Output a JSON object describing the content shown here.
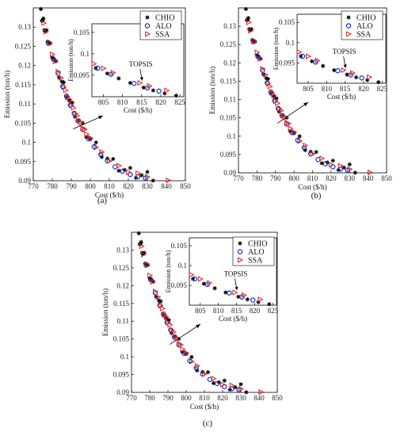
{
  "figure": {
    "captions": [
      "(a)",
      "(b)",
      "(c)"
    ]
  },
  "chart_data": [
    {
      "type": "scatter",
      "panel": "(a)",
      "xlabel": "Cost ($/h)",
      "ylabel": "Emission (ton/h)",
      "xlim": [
        770,
        850
      ],
      "ylim": [
        0.09,
        0.135
      ],
      "xticks": [
        "770",
        "780",
        "790",
        "800",
        "810",
        "820",
        "830",
        "840",
        "850"
      ],
      "yticks": [
        "0.09",
        "0.095",
        "0.1",
        "0.105",
        "0.11",
        "0.115",
        "0.12",
        "0.125",
        "0.13"
      ],
      "inset": {
        "xlim": [
          802,
          826
        ],
        "ylim": [
          0.09,
          0.107
        ],
        "xticks": [
          "805",
          "810",
          "815",
          "820",
          "825"
        ],
        "yticks": [
          "0.095",
          "0.1",
          "0.105"
        ],
        "xlabel": "Cost ($/h)",
        "ylabel": "Emission (ton/h)",
        "annotation": "TOPSIS",
        "topsis_point": [
          815,
          0.0937
        ]
      },
      "series": [
        {
          "name": "CHIO",
          "marker": "asterisk",
          "color": "#000000"
        },
        {
          "name": "ALO",
          "marker": "circle",
          "color": "#1030c0"
        },
        {
          "name": "SSA",
          "marker": "triangle-right",
          "color": "#d42020"
        }
      ]
    },
    {
      "type": "scatter",
      "panel": "(b)",
      "xlabel": "Cost ($/h)",
      "ylabel": "Emission (ton/h)",
      "xlim": [
        770,
        850
      ],
      "ylim": [
        0.09,
        0.135
      ],
      "xticks": [
        "770",
        "780",
        "790",
        "800",
        "810",
        "820",
        "830",
        "840",
        "850"
      ],
      "yticks": [
        "0.09",
        "0.095",
        "0.1",
        "0.105",
        "0.11",
        "0.115",
        "0.12",
        "0.125",
        "0.13"
      ],
      "inset": {
        "xlim": [
          802,
          826
        ],
        "ylim": [
          0.09,
          0.107
        ],
        "xticks": [
          "805",
          "810",
          "815",
          "820",
          "825"
        ],
        "yticks": [
          "0.095",
          "0.1",
          "0.105"
        ],
        "xlabel": "Cost ($/h)",
        "ylabel": "Emission (ton/h)",
        "annotation": "TOPSIS",
        "topsis_point": [
          815,
          0.0937
        ]
      },
      "series": [
        {
          "name": "CHIO",
          "marker": "asterisk",
          "color": "#000000"
        },
        {
          "name": "ALO",
          "marker": "circle",
          "color": "#1030c0"
        },
        {
          "name": "SSA",
          "marker": "triangle-right",
          "color": "#d42020"
        }
      ]
    },
    {
      "type": "scatter",
      "panel": "(c)",
      "xlabel": "Cost ($/h)",
      "ylabel": "Emission (ton/h)",
      "xlim": [
        770,
        850
      ],
      "ylim": [
        0.09,
        0.135
      ],
      "xticks": [
        "770",
        "780",
        "790",
        "800",
        "810",
        "820",
        "830",
        "840",
        "850"
      ],
      "yticks": [
        "0.09",
        "0.095",
        "0.1",
        "0.105",
        "0.11",
        "0.115",
        "0.12",
        "0.125",
        "0.13"
      ],
      "inset": {
        "xlim": [
          802,
          826
        ],
        "ylim": [
          0.09,
          0.107
        ],
        "xticks": [
          "805",
          "810",
          "815",
          "820",
          "825"
        ],
        "yticks": [
          "0.095",
          "0.1",
          "0.105"
        ],
        "xlabel": "Cost ($/h)",
        "ylabel": "Emission (ton/h)",
        "annotation": "TOPSIS",
        "topsis_point": [
          815,
          0.0937
        ]
      },
      "series": [
        {
          "name": "CHIO",
          "marker": "asterisk",
          "color": "#000000"
        },
        {
          "name": "ALO",
          "marker": "circle",
          "color": "#1030c0"
        },
        {
          "name": "SSA",
          "marker": "triangle-right",
          "color": "#d42020"
        }
      ]
    }
  ]
}
